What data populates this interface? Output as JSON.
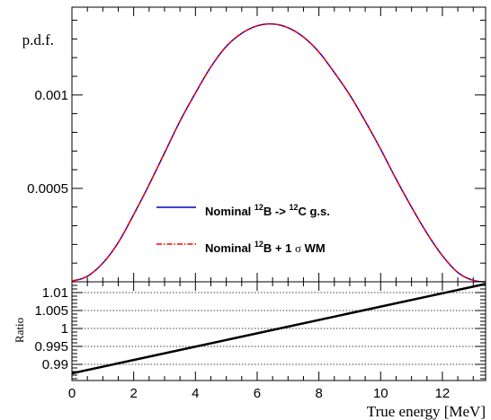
{
  "chart_data": [
    {
      "type": "line",
      "ylabel": "p.d.f.",
      "xlim": [
        0,
        13.4
      ],
      "ylim": [
        0,
        0.00147
      ],
      "ytick_labels": [
        "0.0005",
        "0.001"
      ],
      "grid": false,
      "legend_position": "center-left",
      "series": [
        {
          "name": "Nominal 12B -> 12C g.s.",
          "legend_parts": [
            "Nominal ",
            "12",
            "B -> ",
            "12",
            "C g.s."
          ],
          "color": "#0000cc",
          "line_style": "solid",
          "x": [
            0,
            0.5,
            1,
            1.5,
            2,
            2.5,
            3,
            3.5,
            4,
            4.5,
            5,
            5.5,
            6,
            6.5,
            7,
            7.5,
            8,
            8.5,
            9,
            9.5,
            10,
            10.5,
            11,
            11.5,
            12,
            12.5,
            13,
            13.4
          ],
          "y": [
            5e-06,
            3e-05,
            0.0001,
            0.00021,
            0.00036,
            0.00052,
            0.00069,
            0.00086,
            0.00101,
            0.00115,
            0.00126,
            0.00133,
            0.00137,
            0.00138,
            0.00136,
            0.00131,
            0.00123,
            0.00112,
            0.001,
            0.00086,
            0.00071,
            0.00055,
            0.0004,
            0.00026,
            0.00014,
            5e-05,
            8e-06,
            0
          ]
        },
        {
          "name": "Nominal 12B + 1 σ WM",
          "legend_parts": [
            "Nominal ",
            "12",
            "B + 1 ",
            "σ",
            " WM"
          ],
          "color": "#ff0000",
          "line_style": "dash-dot",
          "x": [
            0,
            0.5,
            1,
            1.5,
            2,
            2.5,
            3,
            3.5,
            4,
            4.5,
            5,
            5.5,
            6,
            6.5,
            7,
            7.5,
            8,
            8.5,
            9,
            9.5,
            10,
            10.5,
            11,
            11.5,
            12,
            12.5,
            13,
            13.4
          ],
          "y": [
            5e-06,
            3e-05,
            0.0001,
            0.00021,
            0.00036,
            0.00052,
            0.00069,
            0.00086,
            0.00101,
            0.00115,
            0.00126,
            0.00133,
            0.00137,
            0.00138,
            0.00136,
            0.00131,
            0.00123,
            0.00112,
            0.001,
            0.00086,
            0.00071,
            0.00055,
            0.0004,
            0.00026,
            0.00014,
            5e-05,
            8e-06,
            0
          ]
        }
      ]
    },
    {
      "type": "line",
      "xlabel": "True energy [MeV]",
      "ylabel": "Ratio",
      "xlim": [
        0,
        13.4
      ],
      "ylim": [
        0.9855,
        1.013
      ],
      "xtick_labels": [
        "0",
        "2",
        "4",
        "6",
        "8",
        "10",
        "12"
      ],
      "ytick_labels": [
        "0.99",
        "0.995",
        "1",
        "1.005",
        "1.01"
      ],
      "grid": true,
      "series": [
        {
          "color": "#000000",
          "x": [
            0,
            13.4
          ],
          "y": [
            0.9875,
            1.0124
          ]
        }
      ]
    }
  ]
}
